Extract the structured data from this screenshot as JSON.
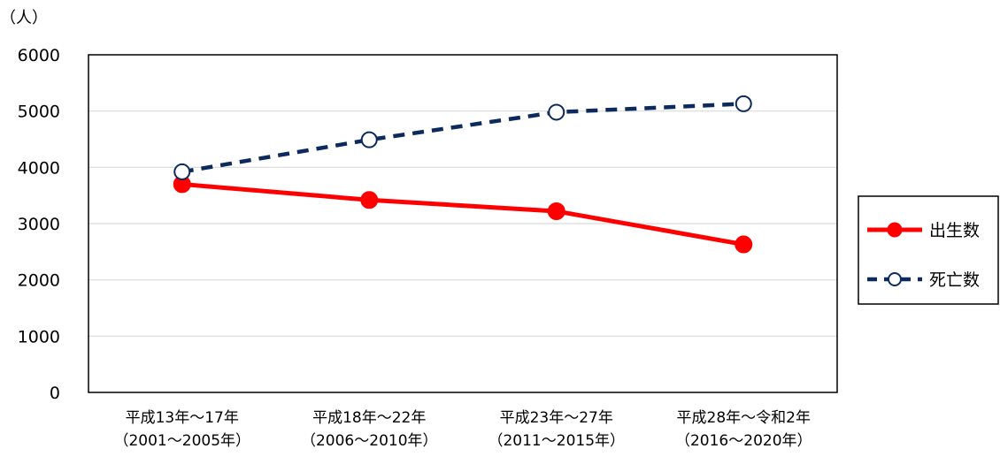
{
  "chart_data": {
    "type": "line",
    "unit_label": "（人）",
    "categories": [
      [
        "平成13年～17年",
        "（2001～2005年）"
      ],
      [
        "平成18年～22年",
        "（2006～2010年）"
      ],
      [
        "平成23年～27年",
        "（2011～2015年）"
      ],
      [
        "平成28年～令和2年",
        "（2016～2020年）"
      ]
    ],
    "yticks": [
      "0",
      "1000",
      "2000",
      "3000",
      "4000",
      "5000",
      "6000"
    ],
    "ylim": [
      0,
      6000
    ],
    "grid": true,
    "legend_position": "right",
    "series": [
      {
        "name": "出生数",
        "values": [
          3700,
          3420,
          3220,
          2630
        ],
        "color": "#ff0000",
        "style": "solid",
        "marker": "filled-circle"
      },
      {
        "name": "死亡数",
        "values": [
          3920,
          4490,
          4980,
          5130
        ],
        "color": "#0d2a5c",
        "style": "dashed",
        "marker": "open-circle"
      }
    ]
  }
}
